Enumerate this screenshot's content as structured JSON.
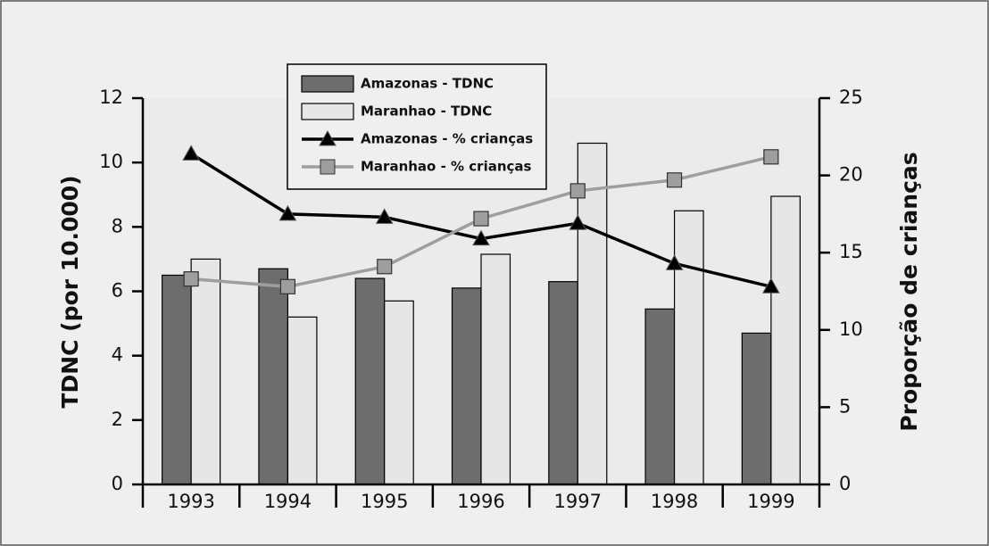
{
  "chart_data": {
    "type": "bar-line",
    "categories": [
      "1993",
      "1994",
      "1995",
      "1996",
      "1997",
      "1998",
      "1999"
    ],
    "ylabel": "TDNC (por 10.000)",
    "y2label": "Proporção de crianças",
    "ylim": [
      0,
      12
    ],
    "yticks": [
      0,
      2,
      4,
      6,
      8,
      10,
      12
    ],
    "y2lim": [
      0,
      25
    ],
    "y2ticks": [
      0,
      5,
      10,
      15,
      20,
      25
    ],
    "series": [
      {
        "name": "Amazonas - TDNC",
        "type": "bar",
        "color": "#6d6d6d",
        "values": [
          6.5,
          6.7,
          6.4,
          6.1,
          6.3,
          5.45,
          4.7
        ]
      },
      {
        "name": "Maranhao - TDNC",
        "type": "bar",
        "color": "#e6e6e6",
        "values": [
          7.0,
          5.2,
          5.7,
          7.15,
          10.6,
          8.5,
          8.95
        ]
      },
      {
        "name": "Amazonas - % crianças",
        "type": "line",
        "axis": "y2",
        "color": "#000000",
        "marker": "triangle",
        "values": [
          21.4,
          17.5,
          17.3,
          15.9,
          16.9,
          14.3,
          12.8
        ]
      },
      {
        "name": "Maranhao - % crianças",
        "type": "line",
        "axis": "y2",
        "color": "#9e9e9e",
        "marker": "square",
        "values": [
          13.3,
          12.8,
          14.1,
          17.2,
          19.0,
          19.7,
          21.2
        ]
      }
    ]
  }
}
